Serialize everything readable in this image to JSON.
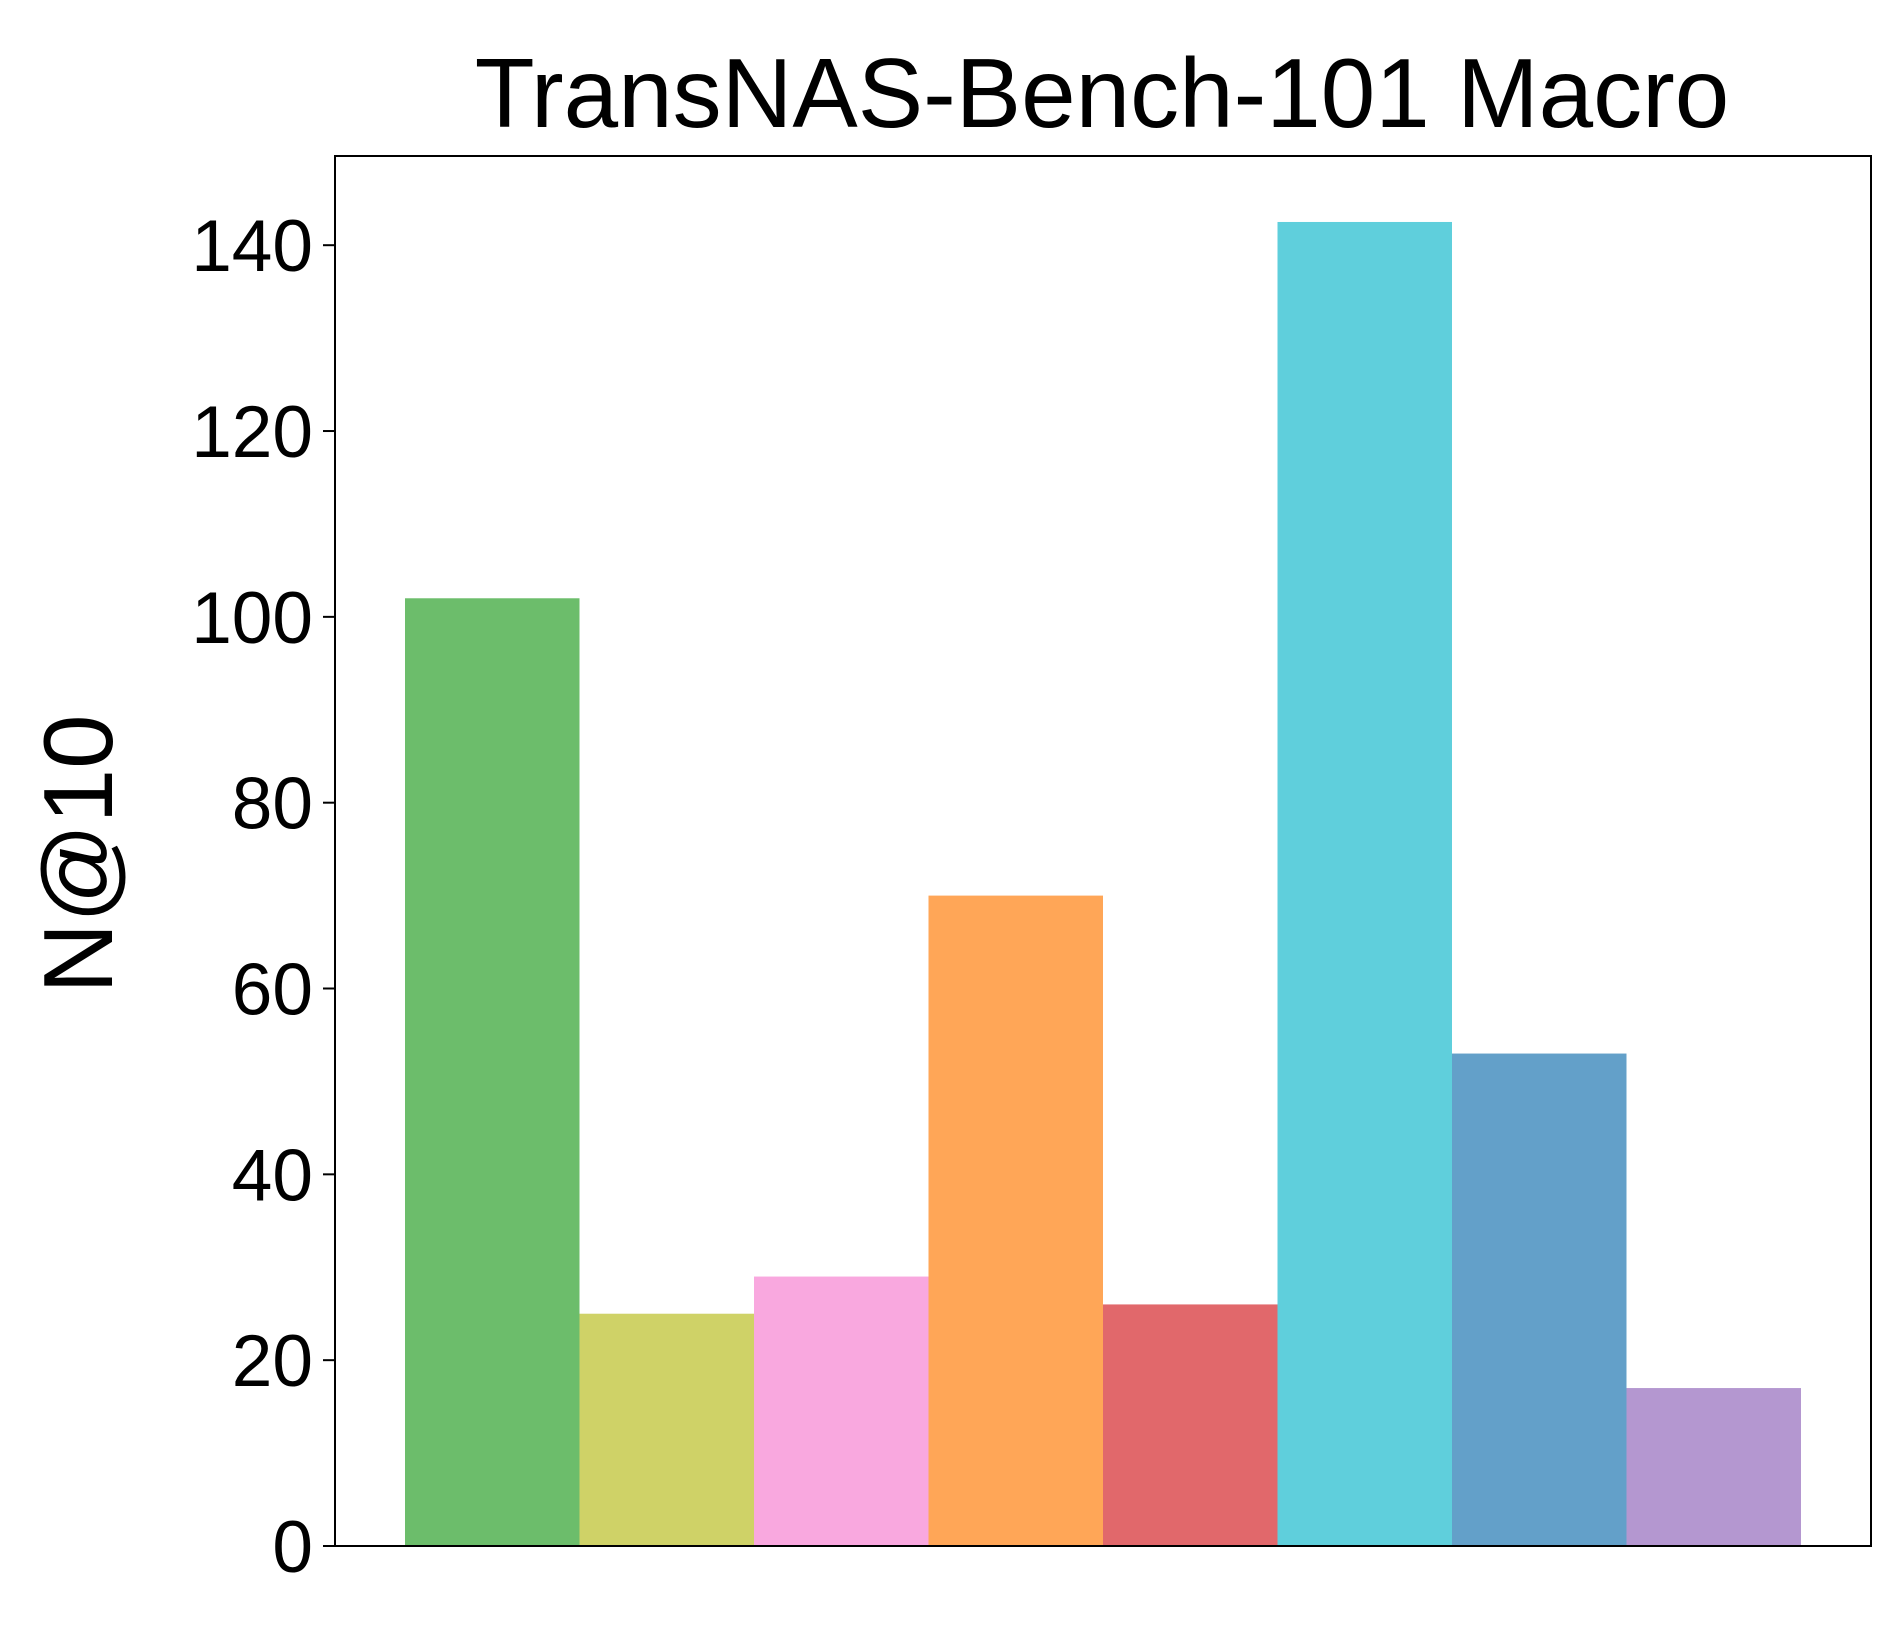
{
  "chart_data": {
    "type": "bar",
    "title": "TransNAS-Bench-101 Macro",
    "ylabel": "N@10",
    "categories": [
      null,
      null,
      null,
      null,
      null,
      null,
      null,
      null
    ],
    "values": [
      102,
      25,
      29,
      70,
      26,
      142.5,
      53,
      17
    ],
    "colors": [
      "#6cbd6b",
      "#cfd267",
      "#f9a8df",
      "#ffa657",
      "#e1686b",
      "#5fcfdc",
      "#63a0c9",
      "#b497d0"
    ],
    "ylim": [
      0,
      149.6
    ],
    "yticks": [
      0,
      20,
      40,
      60,
      80,
      100,
      120,
      140
    ],
    "grid": false
  }
}
